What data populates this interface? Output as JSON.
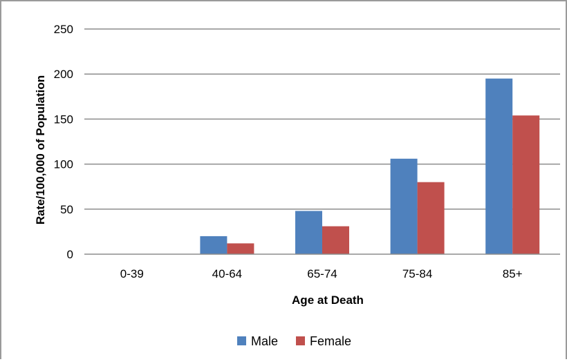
{
  "chart_data": {
    "type": "bar",
    "categories": [
      "0-39",
      "40-64",
      "65-74",
      "75-84",
      "85+"
    ],
    "series": [
      {
        "name": "Male",
        "values": [
          0,
          20,
          48,
          106,
          195
        ],
        "color": "#4F81BD"
      },
      {
        "name": "Female",
        "values": [
          0,
          12,
          31,
          80,
          154
        ],
        "color": "#C0504D"
      }
    ],
    "xlabel": "Age at Death",
    "ylabel": "Rate/100,000 of Population",
    "ylim": [
      0,
      250
    ],
    "yticks": [
      "0",
      "50",
      "100",
      "150",
      "200",
      "250"
    ],
    "grid": true,
    "legend_position": "bottom"
  }
}
